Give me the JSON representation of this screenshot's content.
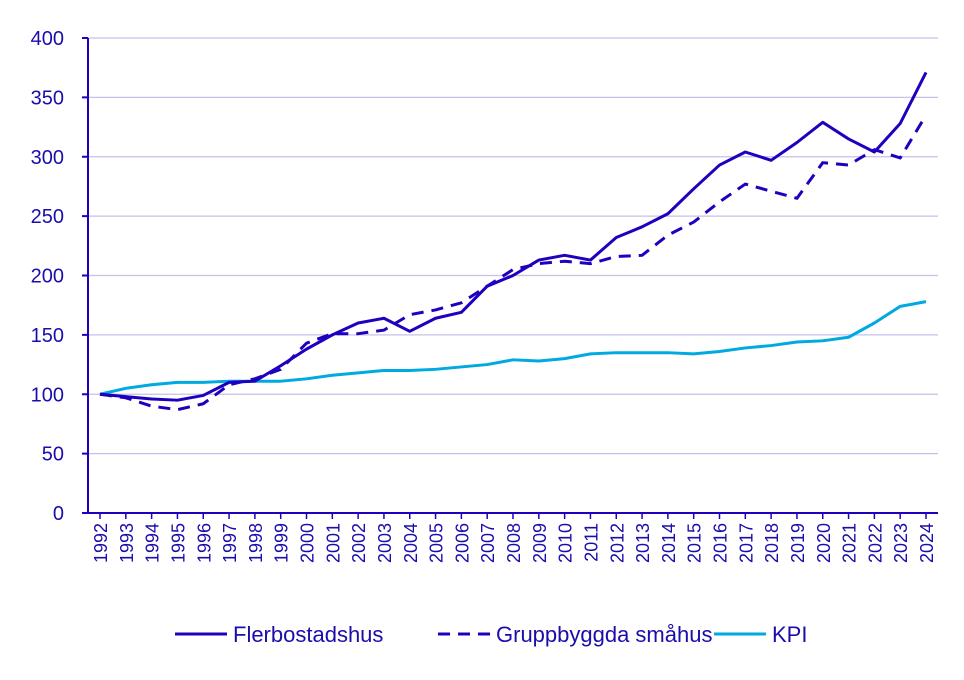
{
  "chart_data": {
    "type": "line",
    "title": "",
    "xlabel": "",
    "ylabel": "",
    "ylim": [
      0,
      400
    ],
    "yticks": [
      "0",
      "50",
      "100",
      "150",
      "200",
      "250",
      "300",
      "350",
      "400"
    ],
    "x": [
      "1992",
      "1993",
      "1994",
      "1995",
      "1996",
      "1997",
      "1998",
      "1999",
      "2000",
      "2001",
      "2002",
      "2003",
      "2004",
      "2005",
      "2006",
      "2007",
      "2008",
      "2009",
      "2010",
      "2011",
      "2012",
      "2013",
      "2014",
      "2015",
      "2016",
      "2017",
      "2018",
      "2019",
      "2020",
      "2021",
      "2022",
      "2023",
      "2024"
    ],
    "series": [
      {
        "name": "Flerbostadshus",
        "style": "solid",
        "color": "#1e00be",
        "values": [
          100,
          98,
          96,
          95,
          99,
          110,
          111,
          124,
          138,
          150,
          160,
          164,
          153,
          164,
          169,
          191,
          200,
          213,
          217,
          213,
          232,
          241,
          252,
          273,
          293,
          304,
          297,
          312,
          329,
          315,
          304,
          328,
          371
        ]
      },
      {
        "name": "Gruppbyggda småhus",
        "style": "dashed",
        "color": "#1e00be",
        "values": [
          100,
          97,
          90,
          87,
          92,
          108,
          113,
          121,
          143,
          151,
          151,
          154,
          167,
          171,
          177,
          191,
          205,
          210,
          212,
          210,
          216,
          217,
          234,
          245,
          262,
          277,
          271,
          265,
          295,
          293,
          306,
          299,
          335
        ]
      },
      {
        "name": "KPI",
        "style": "solid",
        "color": "#00a9e0",
        "values": [
          100,
          105,
          108,
          110,
          110,
          111,
          111,
          111,
          113,
          116,
          118,
          120,
          120,
          121,
          123,
          125,
          129,
          128,
          130,
          134,
          135,
          135,
          135,
          134,
          136,
          139,
          141,
          144,
          145,
          148,
          160,
          174,
          178
        ]
      }
    ],
    "grid": true,
    "legend": "bottom"
  }
}
